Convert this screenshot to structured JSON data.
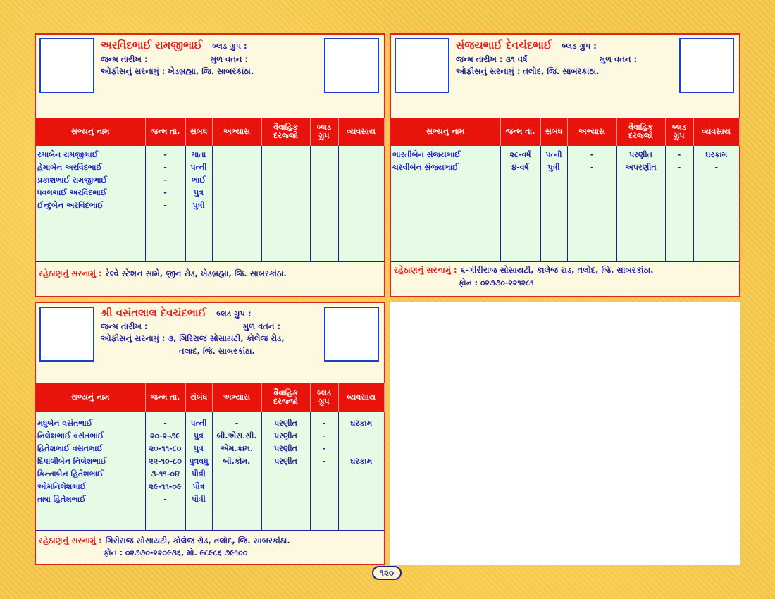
{
  "cards": [
    {
      "name": "અરવિંદભાઈ રામજીભાઈ",
      "blood_group_label": "બ્લડ ગ્રુપ :",
      "dob_label": "જન્મ તારીખ :",
      "native_label": "મુળ વતન :",
      "office_label": "ઓફીસનું સરનામું :",
      "office_value": "ખેડબ્રહ્મા, જિ. સાબરકાંઠા.",
      "headers": [
        "સભ્યનું નામ",
        "જન્મ તા.",
        "સંબંધ",
        "અભ્યાસ",
        "વૈવાહિક દરજ્જો",
        "બ્લડ ગ્રુપ",
        "વ્યવસાય"
      ],
      "members": {
        "names": [
          "રમાબેન રામજીભાઈ",
          "હેમાબેન અરવિંદભાઈ",
          "પ્રકાશભાઈ રામજીભાઈ",
          "ધવલભાઈ અરવિંદભાઈ",
          "ઈન્દુબેન અરવિંદભાઈ"
        ],
        "dob": [
          "-",
          "-",
          "-",
          "-",
          "-"
        ],
        "relation": [
          "માતા",
          "પત્ની",
          "ભાઈ",
          "પુત્ર",
          "પુત્રી"
        ],
        "education": [],
        "marital": [],
        "blood": [],
        "occupation": []
      },
      "residence_label": "રહેઠાણનું સરનામું :",
      "residence_value": "રેલ્વે સ્ટેશન સામે, જીન રોડ, ખેડબ્રહ્મા, જિ. સાબરકાંઠા."
    },
    {
      "name": "સંજયભાઈ દેવચંદભાઈ",
      "blood_group_label": "બ્લડ ગ્રુપ :",
      "dob_label": "જન્મ તારીખ :",
      "dob_value": "૩૧ વર્ષ",
      "native_label": "મુળ વતન :",
      "office_label": "ઓફીસનું સરનામું :",
      "office_value": "તલોદ, જિ. સાબરકાંઠા.",
      "headers": [
        "સભ્યનું નામ",
        "જન્મ તા.",
        "સંબંધ",
        "અભ્યાસ",
        "વૈવાહિક દરજ્જો",
        "બ્લડ ગ્રુપ",
        "વ્યવસાય"
      ],
      "members": {
        "names": [
          "ભારતીબેન સંજયભાઈ",
          "ચરવીબેન સંજયભાઈ"
        ],
        "dob": [
          "૨૮-વર્ષ",
          "૪-વર્ષ"
        ],
        "relation": [
          "પત્ની",
          "પુત્રી"
        ],
        "education": [
          "-",
          "-"
        ],
        "marital": [
          "પરણીત",
          "અપરણીત"
        ],
        "blood": [
          "-",
          "-"
        ],
        "occupation": [
          "ઘરકામ",
          "-"
        ]
      },
      "residence_label": "રહેઠાણનું સરનામું :",
      "residence_value": "૬-ગીરીરાજ સોસાયટી, કાલેજ રાડ, તલોદ, જિ. સાબરકાંઠા.",
      "phone": "ફોન : ૦૨૭૭૦-૨૨૧૨૮૧"
    },
    {
      "name": "શ્રી વસંતલાલ દેવચંદભાઈ",
      "blood_group_label": "બ્લડ ગ્રુપ :",
      "dob_label": "જન્મ તારીખ :",
      "native_label": "મુળ વતન :",
      "office_label": "ઓફીસનું સરનામું :",
      "office_value": "૩, ગિરિરાજ સોસાયટી, કોલેજ રોડ,",
      "office_value_2": "તલાદ, જિ. સાબરકાંઠા.",
      "headers": [
        "સભ્યનું નામ",
        "જન્મ તા.",
        "સંબંધ",
        "અભ્યાસ",
        "વૈવાહિક દરજ્જો",
        "બ્લડ ગ્રુપ",
        "વ્યવસાય"
      ],
      "members": {
        "names": [
          "મધુબેન વસંતભાઈ",
          "નિલેશભાઈ વસંતભાઈ",
          "હિતેશભાઈ વસંતભાઈ",
          "દિપાલીબેન નિલેશભાઈ",
          "કિન્નાબેન હિતેશભાઈ",
          "ઓમનિલેશભાઈ",
          "તાષા હિતેશભાઈ"
        ],
        "dob": [
          "-",
          "૨૦-૨-૭૯",
          "૨૦-૧૧-૮૦",
          "૨૨-૧૦-૮૦",
          "૩-૧૧-૦૪",
          "૨૯-૧૧-૦૯",
          "-"
        ],
        "relation": [
          "પત્ની",
          "પુત્ર",
          "પુત્ર",
          "પુત્રવધુ",
          "પૌત્રી",
          "પૌત્ર",
          "પૌત્રી"
        ],
        "education": [
          "-",
          "બી.એસ.સી.",
          "એમ.કામ.",
          "બી.કોમ."
        ],
        "marital": [
          "પરણીત",
          "પરણીત",
          "પરણીત",
          "પરણીત"
        ],
        "blood": [
          "-",
          "-",
          "-",
          "-"
        ],
        "occupation": [
          "ઘરકામ",
          "",
          "",
          "ઘરકામ"
        ]
      },
      "residence_label": "રહેઠાણનું સરનામું :",
      "residence_value": "ગિરીરાજ સોસાયટી, કોલેજ રોડ, તલોદ, જિ. સાબરકાંઠા.",
      "phone": "ફોન : ૦૨૭૭૦-૨૨૦૯૩૬, મો. ૯૮૯૮૬ ૭૯૧૦૦"
    }
  ],
  "page_number": "૧૨૦"
}
